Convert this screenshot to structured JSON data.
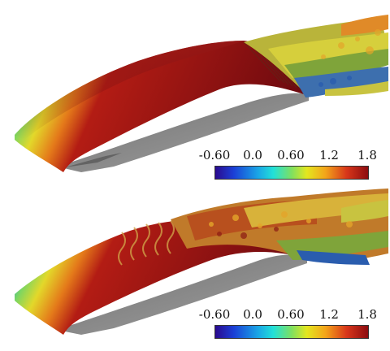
{
  "figure": {
    "panels": [
      {
        "name": "top",
        "colorbar": {
          "ticks": [
            "-0.60",
            "0.0",
            "0.60",
            "1.2",
            "1.8"
          ],
          "range": [
            -0.6,
            1.8
          ]
        }
      },
      {
        "name": "bottom",
        "colorbar": {
          "ticks": [
            "-0.60",
            "0.0",
            "0.60",
            "1.2",
            "1.8"
          ],
          "range": [
            -0.6,
            1.8
          ]
        }
      }
    ],
    "colors": {
      "surface_red": "#7e0d12",
      "underside_gray": "#8a8a8a",
      "turbulence_yellow": "#c9c23a",
      "turbulence_green": "#6fa83a",
      "turbulence_blue": "#2a5dae"
    }
  }
}
